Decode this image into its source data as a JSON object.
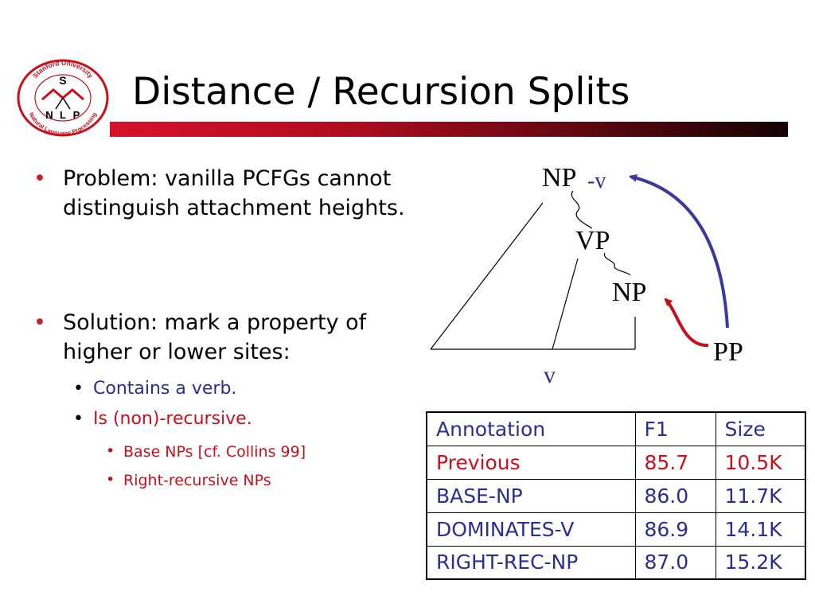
{
  "logo": {
    "ring_top": "Stanford University",
    "ring_bottom": "Natural Language Processing",
    "letters": [
      "S",
      "N",
      "L",
      "P"
    ]
  },
  "slide": {
    "title": "Distance / Recursion Splits"
  },
  "bullets": {
    "problem": "Problem: vanilla PCFGs cannot distinguish attachment heights.",
    "solution": "Solution: mark a property of higher or lower sites:",
    "contains_verb": "Contains a verb.",
    "non_recursive": "Is (non)-recursive.",
    "base_nps": "Base NPs [cf. Collins 99]",
    "right_recursive": "Right-recursive NPs",
    "bullet_glyph": "•"
  },
  "tree": {
    "np_top": "NP",
    "np_top_mark": "-v",
    "vp": "VP",
    "np_low": "NP",
    "pp": "PP",
    "verb": "v"
  },
  "table": {
    "header": [
      "Annotation",
      "F1",
      "Size"
    ],
    "rows": [
      {
        "annotation": "Previous",
        "f1": "85.7",
        "size": "10.5K"
      },
      {
        "annotation": "BASE-NP",
        "f1": "86.0",
        "size": "11.7K"
      },
      {
        "annotation": "DOMINATES-V",
        "f1": "86.9",
        "size": "14.1K"
      },
      {
        "annotation": "RIGHT-REC-NP",
        "f1": "87.0",
        "size": "15.2K"
      }
    ]
  },
  "colors": {
    "bullet_red": "#cc1e24",
    "text_blue": "#2a2f8f",
    "text_red": "#c8101c",
    "arrow_blue": "#3a3a9c",
    "arrow_red": "#c8101c"
  }
}
